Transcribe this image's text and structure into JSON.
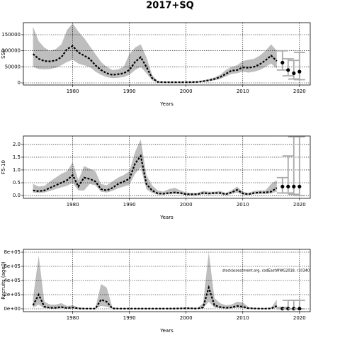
{
  "title": "2017+SQ",
  "chart_data": [
    {
      "type": "line",
      "ylabel": "SSB",
      "xlabel": "Years",
      "xlim": [
        1971.3,
        2021.9
      ],
      "xticks": [
        1980,
        1990,
        2000,
        2010,
        2020
      ],
      "ylim": [
        -6600,
        187500
      ],
      "yticks": [
        0,
        50000,
        100000,
        150000
      ],
      "grid": true,
      "band_color": "#bebebe",
      "line_color": "#000000",
      "x": [
        1973,
        1974,
        1975,
        1976,
        1977,
        1978,
        1979,
        1980,
        1981,
        1982,
        1983,
        1984,
        1985,
        1986,
        1987,
        1988,
        1989,
        1990,
        1991,
        1992,
        1993,
        1994,
        1995,
        1996,
        1997,
        1998,
        1999,
        2000,
        2001,
        2002,
        2003,
        2004,
        2005,
        2006,
        2007,
        2008,
        2009,
        2010,
        2011,
        2012,
        2013,
        2014,
        2015,
        2016
      ],
      "median": [
        90000,
        75000,
        68000,
        67000,
        70000,
        80000,
        105000,
        115000,
        95000,
        85000,
        75000,
        55000,
        40000,
        30000,
        25000,
        27000,
        30000,
        40000,
        65000,
        80000,
        50000,
        15000,
        3000,
        2000,
        2000,
        2000,
        2000,
        2000,
        2500,
        3000,
        5000,
        8000,
        12000,
        18000,
        28000,
        38000,
        40000,
        48000,
        47000,
        50000,
        58000,
        70000,
        85000,
        68000
      ],
      "upper": [
        175000,
        130000,
        110000,
        100000,
        105000,
        120000,
        165000,
        185000,
        160000,
        140000,
        115000,
        90000,
        65000,
        50000,
        40000,
        42000,
        50000,
        90000,
        110000,
        120000,
        80000,
        25000,
        5000,
        4000,
        4000,
        4000,
        4000,
        4000,
        4500,
        5000,
        8000,
        12000,
        17000,
        25000,
        40000,
        50000,
        55000,
        68000,
        72000,
        75000,
        85000,
        100000,
        120000,
        100000
      ],
      "lower": [
        50000,
        43000,
        42000,
        43000,
        47000,
        55000,
        65000,
        72000,
        60000,
        55000,
        50000,
        35000,
        25000,
        18000,
        15000,
        16000,
        18000,
        25000,
        40000,
        50000,
        30000,
        8000,
        1500,
        1000,
        1000,
        1000,
        1000,
        1000,
        1200,
        1500,
        3000,
        5000,
        8000,
        12000,
        20000,
        28000,
        30000,
        35000,
        32000,
        35000,
        40000,
        50000,
        60000,
        45000
      ],
      "proj_x": [
        2017,
        2018,
        2019,
        2020
      ],
      "proj_median": [
        63000,
        40000,
        30000,
        35000
      ],
      "proj_lower": [
        40000,
        22000,
        12000,
        10000
      ],
      "proj_upper": [
        100000,
        75000,
        70000,
        95000
      ]
    },
    {
      "type": "line",
      "ylabel": "F5-10",
      "xlabel": "Years",
      "xlim": [
        1971.3,
        2021.9
      ],
      "xticks": [
        1980,
        1990,
        2000,
        2010,
        2020
      ],
      "ylim": [
        -0.11,
        2.33
      ],
      "yticks": [
        {
          "value": 0,
          "label": "0.0"
        },
        0.5,
        {
          "value": 1,
          "label": "1.0"
        },
        1.5,
        {
          "value": 2,
          "label": "2.0"
        }
      ],
      "grid": true,
      "band_color": "#bebebe",
      "line_color": "#000000",
      "x": [
        1973,
        1974,
        1975,
        1976,
        1977,
        1978,
        1979,
        1980,
        1981,
        1982,
        1983,
        1984,
        1985,
        1986,
        1987,
        1988,
        1989,
        1990,
        1991,
        1992,
        1993,
        1994,
        1995,
        1996,
        1997,
        1998,
        1999,
        2000,
        2001,
        2002,
        2003,
        2004,
        2005,
        2006,
        2007,
        2008,
        2009,
        2010,
        2011,
        2012,
        2013,
        2014,
        2015,
        2016
      ],
      "median": [
        0.2,
        0.17,
        0.2,
        0.3,
        0.4,
        0.5,
        0.6,
        0.8,
        0.35,
        0.7,
        0.65,
        0.55,
        0.25,
        0.2,
        0.3,
        0.45,
        0.55,
        0.65,
        1.25,
        1.55,
        0.45,
        0.2,
        0.08,
        0.07,
        0.1,
        0.12,
        0.1,
        0.05,
        0.05,
        0.05,
        0.1,
        0.08,
        0.1,
        0.1,
        0.05,
        0.12,
        0.22,
        0.08,
        0.05,
        0.1,
        0.12,
        0.12,
        0.15,
        0.3
      ],
      "upper": [
        0.45,
        0.35,
        0.38,
        0.55,
        0.7,
        0.85,
        0.95,
        1.3,
        0.6,
        1.15,
        1.05,
        0.95,
        0.45,
        0.4,
        0.55,
        0.7,
        0.8,
        0.95,
        1.7,
        2.2,
        0.8,
        0.4,
        0.2,
        0.15,
        0.25,
        0.3,
        0.2,
        0.12,
        0.1,
        0.1,
        0.18,
        0.15,
        0.15,
        0.18,
        0.1,
        0.2,
        0.35,
        0.15,
        0.1,
        0.18,
        0.2,
        0.2,
        0.45,
        0.6
      ],
      "lower": [
        0.12,
        0.1,
        0.12,
        0.18,
        0.25,
        0.32,
        0.38,
        0.5,
        0.2,
        0.2,
        0.45,
        0.4,
        0.15,
        0.12,
        0.18,
        0.28,
        0.35,
        0.42,
        0.85,
        1.1,
        0.25,
        0.1,
        0.04,
        0.04,
        0.05,
        0.06,
        0.05,
        0.02,
        0.02,
        0.02,
        0.05,
        0.04,
        0.05,
        0.05,
        0.02,
        0.06,
        0.12,
        0.04,
        0.02,
        0.05,
        0.06,
        0.06,
        0.08,
        0.15
      ],
      "proj_x": [
        2017,
        2018,
        2019,
        2020
      ],
      "proj_median": [
        0.35,
        0.35,
        0.35,
        0.35
      ],
      "proj_lower": [
        0.1,
        0.1,
        0.05,
        0
      ],
      "proj_upper": [
        0.7,
        1.55,
        2.3,
        2.3
      ]
    },
    {
      "type": "line",
      "ylabel": "Recruits (age0)",
      "xlabel": "Years",
      "annotation": "stockassessment.org, codEastWWG2018, r10340",
      "xlim": [
        1971.3,
        2021.9
      ],
      "xticks": [
        1980,
        1990,
        2000,
        2010,
        2020
      ],
      "ylim": [
        -40000,
        840000
      ],
      "yticks": [
        {
          "value": 0,
          "label": "0e+00"
        },
        {
          "value": 200000,
          "label": "2e+05"
        },
        {
          "value": 400000,
          "label": "4e+05"
        },
        {
          "value": 600000,
          "label": "6e+05"
        },
        {
          "value": 800000,
          "label": "8e+05"
        }
      ],
      "grid": true,
      "band_color": "#bebebe",
      "line_color": "#000000",
      "x": [
        1973,
        1974,
        1975,
        1976,
        1977,
        1978,
        1979,
        1980,
        1981,
        1982,
        1983,
        1984,
        1985,
        1986,
        1987,
        1988,
        1989,
        1990,
        1991,
        1992,
        1993,
        1994,
        1995,
        1996,
        1997,
        1998,
        1999,
        2000,
        2001,
        2002,
        2003,
        2004,
        2005,
        2006,
        2007,
        2008,
        2009,
        2010,
        2011,
        2012,
        2013,
        2014,
        2015,
        2016
      ],
      "median": [
        50000,
        200000,
        30000,
        15000,
        15000,
        25000,
        10000,
        20000,
        5000,
        3000,
        3000,
        3000,
        130000,
        100000,
        5000,
        3000,
        3000,
        3000,
        3000,
        3000,
        3000,
        3000,
        3000,
        3000,
        3000,
        4000,
        5000,
        8000,
        6000,
        3000,
        20000,
        300000,
        50000,
        25000,
        15000,
        20000,
        40000,
        30000,
        8000,
        5000,
        3000,
        3000,
        5000,
        40000
      ],
      "upper": [
        150000,
        750000,
        100000,
        60000,
        60000,
        80000,
        40000,
        50000,
        20000,
        10000,
        10000,
        10000,
        350000,
        300000,
        20000,
        10000,
        10000,
        10000,
        10000,
        10000,
        10000,
        10000,
        10000,
        10000,
        10000,
        12000,
        15000,
        20000,
        18000,
        10000,
        80000,
        800000,
        150000,
        80000,
        50000,
        60000,
        100000,
        90000,
        25000,
        15000,
        10000,
        10000,
        15000,
        130000
      ],
      "lower": [
        15000,
        60000,
        8000,
        4000,
        4000,
        8000,
        3000,
        6000,
        1500,
        1000,
        1000,
        1000,
        40000,
        30000,
        1500,
        1000,
        1000,
        1000,
        1000,
        1000,
        1000,
        1000,
        1000,
        1000,
        1000,
        1300,
        1600,
        2500,
        2000,
        1000,
        6000,
        100000,
        15000,
        8000,
        5000,
        6000,
        12000,
        10000,
        2500,
        1500,
        1000,
        1000,
        1500,
        12000
      ],
      "proj_x": [
        2017,
        2018,
        2019,
        2020
      ],
      "proj_median": [
        3000,
        3000,
        3000,
        3000
      ],
      "proj_lower": [
        0,
        0,
        0,
        0
      ],
      "proj_upper": [
        20000,
        120000,
        120000,
        120000
      ]
    }
  ]
}
